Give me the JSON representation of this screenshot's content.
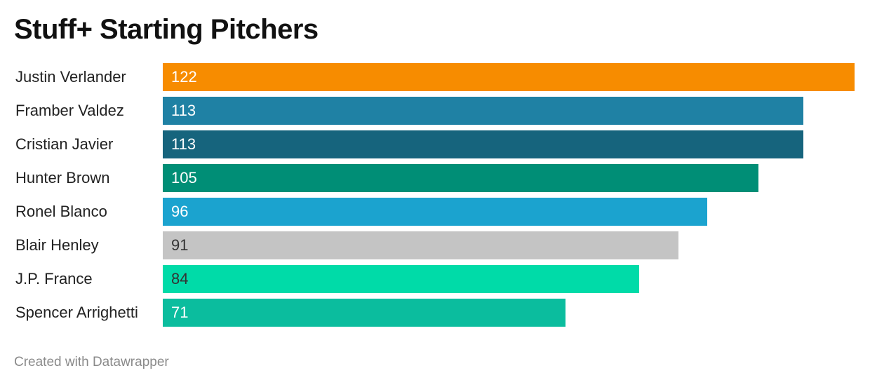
{
  "chart_data": {
    "type": "bar",
    "orientation": "horizontal",
    "title": "Stuff+ Starting Pitchers",
    "xlim": [
      0,
      122
    ],
    "categories": [
      "Justin Verlander",
      "Framber Valdez",
      "Cristian Javier",
      "Hunter Brown",
      "Ronel Blanco",
      "Blair Henley",
      "J.P. France",
      "Spencer Arrighetti"
    ],
    "values": [
      122,
      113,
      113,
      105,
      96,
      91,
      84,
      71
    ],
    "colors": [
      "#f78c00",
      "#1f81a4",
      "#16647d",
      "#008e76",
      "#1ba3cf",
      "#c4c4c4",
      "#00dba8",
      "#0bbd9e"
    ],
    "value_text_colors": [
      "#ffffff",
      "#ffffff",
      "#ffffff",
      "#ffffff",
      "#ffffff",
      "#333333",
      "#333333",
      "#ffffff"
    ]
  },
  "footer": {
    "credit": "Created with Datawrapper"
  }
}
